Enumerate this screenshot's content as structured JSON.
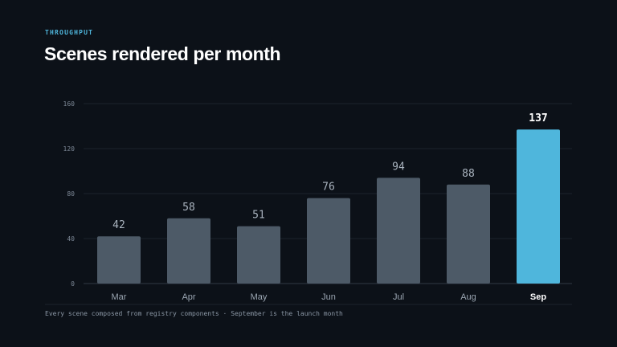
{
  "header": {
    "eyebrow": "THROUGHPUT",
    "title": "Scenes rendered per month"
  },
  "footnote": "Every scene composed from registry components · September is the launch month",
  "colors": {
    "background": "#0c1118",
    "bar": "#4d5a67",
    "highlight_bar": "#4fb6dc",
    "grid": "#1c232d",
    "axis": "#2f3945"
  },
  "chart_data": {
    "type": "bar",
    "categories": [
      "Mar",
      "Apr",
      "May",
      "Jun",
      "Jul",
      "Aug",
      "Sep"
    ],
    "values": [
      42,
      58,
      51,
      76,
      94,
      88,
      137
    ],
    "highlight": "Sep",
    "ylim": [
      0,
      160
    ],
    "yticks": [
      0,
      40,
      80,
      120,
      160
    ],
    "grid": true
  }
}
